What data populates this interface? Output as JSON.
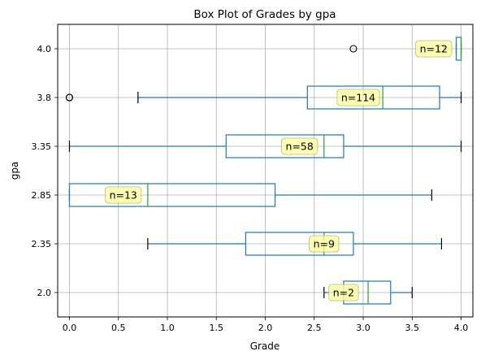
{
  "chart_data": {
    "type": "boxplot",
    "orientation": "horizontal",
    "title": "Box Plot of Grades by gpa",
    "xlabel": "Grade",
    "ylabel": "gpa",
    "xlim": [
      -0.12,
      4.12
    ],
    "xticks": [
      "0.0",
      "0.5",
      "1.0",
      "1.5",
      "2.0",
      "2.5",
      "3.0",
      "3.5",
      "4.0"
    ],
    "xtick_values": [
      0,
      0.5,
      1.0,
      1.5,
      2.0,
      2.5,
      3.0,
      3.5,
      4.0
    ],
    "grid": true,
    "colors": {
      "box": "#1f77b4",
      "median": "#2ca02c",
      "label_bg": "#ffff99",
      "grid": "#b0b0b0"
    },
    "categories": [
      "2.0",
      "2.35",
      "2.85",
      "3.35",
      "3.8",
      "4.0"
    ],
    "boxes": [
      {
        "category": "2.0",
        "n_label": "n=2",
        "whislo": 2.6,
        "q1": 2.8,
        "med": 3.05,
        "q3": 3.28,
        "whishi": 3.5,
        "fliers": [],
        "label_x": 2.8
      },
      {
        "category": "2.35",
        "n_label": "n=9",
        "whislo": 0.8,
        "q1": 1.8,
        "med": 2.6,
        "q3": 2.9,
        "whishi": 3.8,
        "fliers": [],
        "label_x": 2.6
      },
      {
        "category": "2.85",
        "n_label": "n=13",
        "whislo": 0.0,
        "q1": 0.0,
        "med": 0.8,
        "q3": 2.1,
        "whishi": 3.7,
        "fliers": [],
        "label_x": 0.55
      },
      {
        "category": "3.35",
        "n_label": "n=58",
        "whislo": 0.0,
        "q1": 1.6,
        "med": 2.6,
        "q3": 2.8,
        "whishi": 4.0,
        "fliers": [],
        "label_x": 2.35
      },
      {
        "category": "3.8",
        "n_label": "n=114",
        "whislo": 0.7,
        "q1": 2.43,
        "med": 3.2,
        "q3": 3.78,
        "whishi": 4.0,
        "fliers": [
          0.0,
          0.0,
          0.0
        ],
        "label_x": 2.95
      },
      {
        "category": "4.0",
        "n_label": "n=12",
        "whislo": 3.95,
        "q1": 3.95,
        "med": 4.0,
        "q3": 4.0,
        "whishi": 4.0,
        "fliers": [
          2.9,
          3.8
        ],
        "label_x": 3.72
      }
    ]
  }
}
